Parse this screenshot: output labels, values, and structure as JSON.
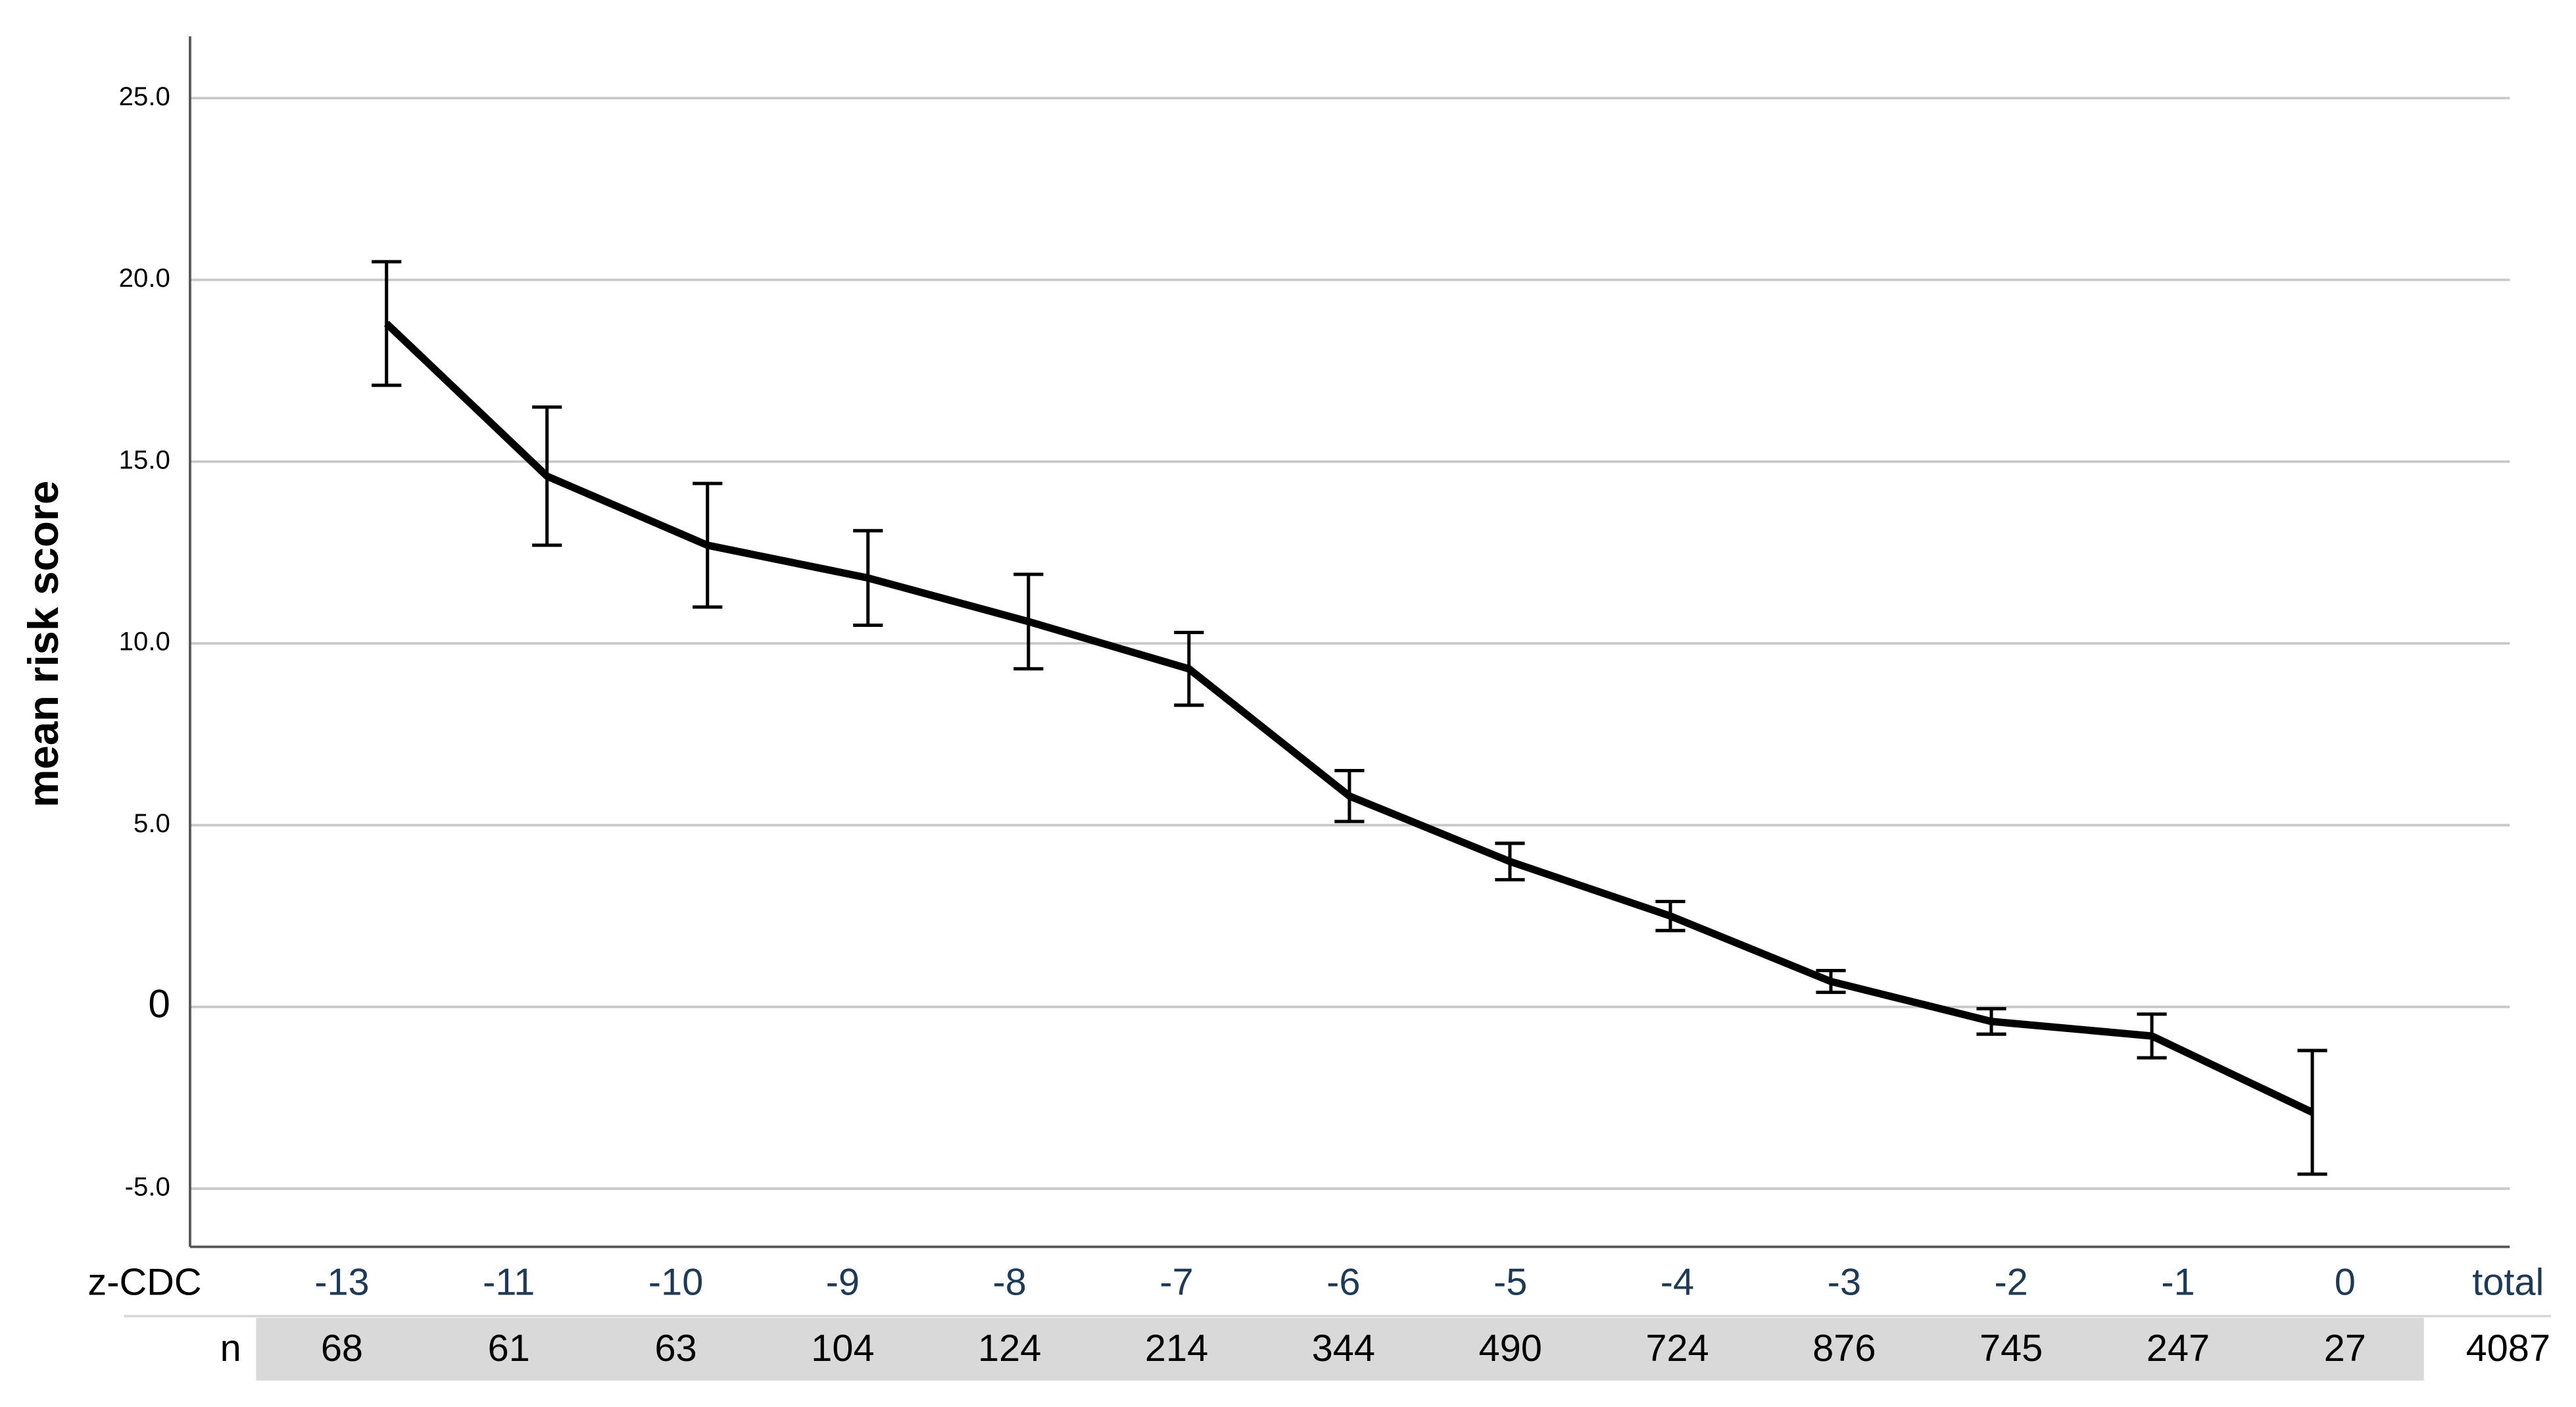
{
  "chart_data": {
    "type": "line",
    "y_label": "mean risk score",
    "x_label": "z-CDC",
    "categories": [
      "-13",
      "-11",
      "-10",
      "-9",
      "-8",
      "-7",
      "-6",
      "-5",
      "-4",
      "-3",
      "-2",
      "-1",
      "0"
    ],
    "series": [
      {
        "color": "#000000",
        "values": [
          18.8,
          14.6,
          12.7,
          11.8,
          10.6,
          9.3,
          5.8,
          4.0,
          2.5,
          0.7,
          -0.4,
          -0.8,
          -2.9
        ],
        "errors": [
          1.7,
          1.9,
          1.7,
          1.3,
          1.3,
          1.0,
          0.7,
          0.5,
          0.4,
          0.3,
          0.35,
          0.6,
          1.7
        ]
      }
    ],
    "ylim": [
      -6.6,
      26.7
    ],
    "yticks": [
      {
        "value": -5,
        "label": "-5.0"
      },
      0,
      {
        "value": 5,
        "label": "5.0"
      },
      {
        "value": 10,
        "label": "10.0"
      },
      {
        "value": 15,
        "label": "15.0"
      },
      {
        "value": 20,
        "label": "20.0"
      },
      {
        "value": 25,
        "label": "25.0"
      }
    ],
    "grid": true,
    "n_label": "n",
    "n_values": [
      68,
      61,
      63,
      104,
      124,
      214,
      344,
      490,
      724,
      876,
      745,
      247,
      27
    ],
    "total_label": "total",
    "total_n": 4087
  }
}
